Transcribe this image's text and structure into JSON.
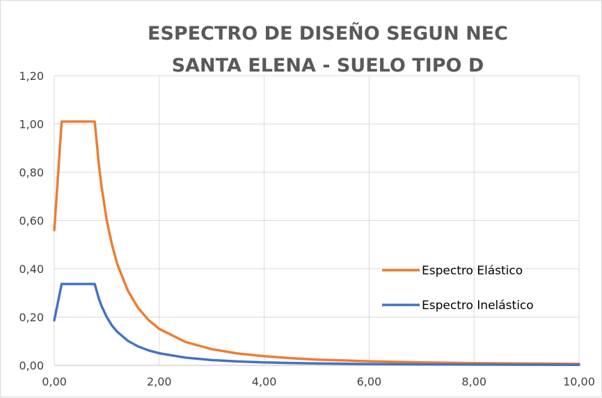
{
  "chart_data": {
    "type": "line",
    "title_lines": [
      "ESPECTRO DE DISEÑO SEGUN NEC",
      "SANTA ELENA - SUELO TIPO D"
    ],
    "xlabel": "",
    "ylabel": "",
    "xlim": [
      0,
      10
    ],
    "ylim": [
      0,
      1.2
    ],
    "xticks": [
      0,
      2,
      4,
      6,
      8,
      10
    ],
    "xtick_labels": [
      "0,00",
      "2,00",
      "4,00",
      "6,00",
      "8,00",
      "10,00"
    ],
    "yticks": [
      0,
      0.2,
      0.4,
      0.6,
      0.8,
      1.0,
      1.2
    ],
    "ytick_labels": [
      "0,00",
      "0,20",
      "0,40",
      "0,60",
      "0,80",
      "1,00",
      "1,20"
    ],
    "grid": true,
    "legend_position": "right",
    "series": [
      {
        "name": "Espectro Elástico",
        "color": "#ed7d31",
        "x": [
          0,
          0.14,
          0.2,
          0.4,
          0.6,
          0.77,
          0.85,
          0.9,
          1.0,
          1.1,
          1.2,
          1.4,
          1.6,
          1.8,
          2.0,
          2.5,
          3.0,
          3.5,
          4.0,
          4.5,
          5.0,
          6.0,
          7.0,
          8.0,
          9.0,
          10.0
        ],
        "y": [
          0.56,
          1.01,
          1.01,
          1.01,
          1.01,
          1.01,
          0.83,
          0.74,
          0.6,
          0.5,
          0.42,
          0.31,
          0.237,
          0.187,
          0.151,
          0.097,
          0.067,
          0.049,
          0.038,
          0.03,
          0.024,
          0.017,
          0.012,
          0.0095,
          0.0075,
          0.006
        ]
      },
      {
        "name": "Espectro Inelástico",
        "color": "#4472c4",
        "x": [
          0,
          0.14,
          0.2,
          0.4,
          0.6,
          0.77,
          0.85,
          0.9,
          1.0,
          1.1,
          1.2,
          1.4,
          1.6,
          1.8,
          2.0,
          2.5,
          3.0,
          3.5,
          4.0,
          4.5,
          5.0,
          6.0,
          7.0,
          8.0,
          9.0,
          10.0
        ],
        "y": [
          0.187,
          0.337,
          0.337,
          0.337,
          0.337,
          0.337,
          0.276,
          0.246,
          0.2,
          0.165,
          0.139,
          0.102,
          0.078,
          0.062,
          0.05,
          0.032,
          0.022,
          0.016,
          0.0125,
          0.0099,
          0.008,
          0.0056,
          0.0041,
          0.0031,
          0.0025,
          0.002
        ]
      }
    ]
  }
}
